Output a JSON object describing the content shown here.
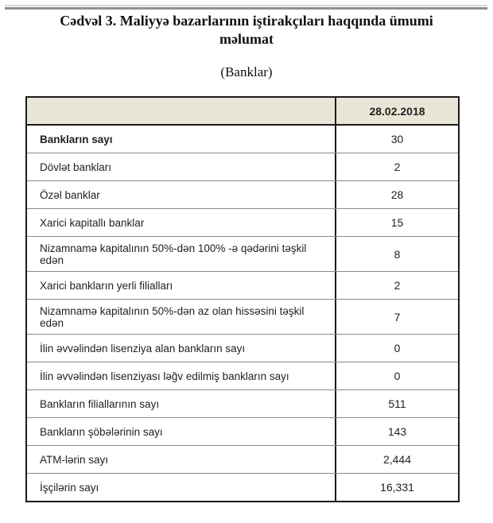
{
  "document": {
    "title": "Cədvəl 3. Maliyyə bazarlarının iştirakçıları haqqında ümumi məlumat",
    "subtitle": "(Banklar)"
  },
  "table": {
    "header": {
      "label": "",
      "date": "28.02.2018"
    },
    "rows": [
      {
        "label": "Bankların sayı",
        "value": "30"
      },
      {
        "label": "Dövlət bankları",
        "value": "2"
      },
      {
        "label": "Özəl banklar",
        "value": "28"
      },
      {
        "label": "Xarici kapitallı banklar",
        "value": "15"
      },
      {
        "label": "Nizamnamə kapitalının 50%-dən 100% -ə qədərini təşkil edən",
        "value": "8"
      },
      {
        "label": "Xarici bankların yerli filialları",
        "value": "2"
      },
      {
        "label": "Nizamnamə kapitalının 50%-dən az olan hissəsini  təşkil edən",
        "value": "7"
      },
      {
        "label": "İlin əvvəlindən lisenziya alan bankların sayı",
        "value": "0"
      },
      {
        "label": "İlin əvvəlindən lisenziyası ləğv edilmiş bankların sayı",
        "value": "0"
      },
      {
        "label": "Bankların filiallarının sayı",
        "value": "511"
      },
      {
        "label": "Bankların şöbələrinin sayı",
        "value": "143"
      },
      {
        "label": "ATM-lərin sayı",
        "value": "2,444"
      },
      {
        "label": "İşçilərin sayı",
        "value": "16,331"
      }
    ],
    "colors": {
      "header_background": "#e9e6d7",
      "outer_border": "#1b1b1b",
      "row_divider": "#8a8a8a"
    }
  }
}
